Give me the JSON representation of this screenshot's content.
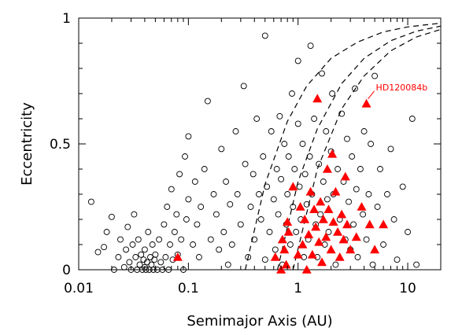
{
  "chart_data": {
    "type": "scatter",
    "xlabel": "Semimajor Axis (AU)",
    "ylabel": "Eccentricity",
    "xscale": "log",
    "xlim": [
      0.01,
      20
    ],
    "ylim": [
      0,
      1
    ],
    "x_ticks": [
      0.01,
      0.1,
      1,
      10
    ],
    "x_tick_labels": [
      "0.01",
      "0.1",
      "1",
      "10"
    ],
    "y_ticks": [
      0,
      0.5,
      1
    ],
    "y_tick_labels": [
      "0",
      "0.5",
      "1"
    ],
    "grid": false,
    "legend": "none",
    "colors": {
      "exoplanets": "#000000",
      "highlight": "#ff0000",
      "curves": "#000000"
    },
    "series": [
      {
        "marker": "open-circle",
        "points": [
          [
            0.013,
            0.27
          ],
          [
            0.015,
            0.07
          ],
          [
            0.017,
            0.09
          ],
          [
            0.018,
            0.15
          ],
          [
            0.02,
            0.21
          ],
          [
            0.021,
            0.0
          ],
          [
            0.023,
            0.05
          ],
          [
            0.024,
            0.12
          ],
          [
            0.026,
            0.01
          ],
          [
            0.027,
            0.08
          ],
          [
            0.028,
            0.17
          ],
          [
            0.029,
            0.03
          ],
          [
            0.03,
            0.0
          ],
          [
            0.031,
            0.1
          ],
          [
            0.032,
            0.22
          ],
          [
            0.033,
            0.05
          ],
          [
            0.034,
            0.0
          ],
          [
            0.035,
            0.12
          ],
          [
            0.036,
            0.02
          ],
          [
            0.037,
            0.06
          ],
          [
            0.038,
            0.0
          ],
          [
            0.039,
            0.04
          ],
          [
            0.04,
            0.01
          ],
          [
            0.04,
            0.08
          ],
          [
            0.041,
            0.0
          ],
          [
            0.042,
            0.03
          ],
          [
            0.043,
            0.15
          ],
          [
            0.044,
            0.0
          ],
          [
            0.045,
            0.05
          ],
          [
            0.046,
            0.02
          ],
          [
            0.047,
            0.1
          ],
          [
            0.048,
            0.0
          ],
          [
            0.049,
            0.04
          ],
          [
            0.05,
            0.06
          ],
          [
            0.052,
            0.0
          ],
          [
            0.054,
            0.12
          ],
          [
            0.056,
            0.03
          ],
          [
            0.058,
            0.0
          ],
          [
            0.06,
            0.18
          ],
          [
            0.062,
            0.05
          ],
          [
            0.064,
            0.25
          ],
          [
            0.066,
            0.0
          ],
          [
            0.068,
            0.1
          ],
          [
            0.07,
            0.32
          ],
          [
            0.072,
            0.04
          ],
          [
            0.075,
            0.15
          ],
          [
            0.078,
            0.22
          ],
          [
            0.08,
            0.06
          ],
          [
            0.083,
            0.38
          ],
          [
            0.086,
            0.12
          ],
          [
            0.09,
            0.0
          ],
          [
            0.093,
            0.45
          ],
          [
            0.096,
            0.2
          ],
          [
            0.1,
            0.28
          ],
          [
            0.1,
            0.53
          ],
          [
            0.11,
            0.1
          ],
          [
            0.115,
            0.35
          ],
          [
            0.12,
            0.18
          ],
          [
            0.125,
            0.05
          ],
          [
            0.13,
            0.25
          ],
          [
            0.14,
            0.4
          ],
          [
            0.15,
            0.67
          ],
          [
            0.16,
            0.12
          ],
          [
            0.17,
            0.3
          ],
          [
            0.18,
            0.22
          ],
          [
            0.19,
            0.08
          ],
          [
            0.2,
            0.48
          ],
          [
            0.21,
            0.15
          ],
          [
            0.22,
            0.35
          ],
          [
            0.23,
            0.02
          ],
          [
            0.24,
            0.26
          ],
          [
            0.25,
            0.1
          ],
          [
            0.27,
            0.55
          ],
          [
            0.28,
            0.3
          ],
          [
            0.3,
            0.18
          ],
          [
            0.32,
            0.73
          ],
          [
            0.33,
            0.42
          ],
          [
            0.35,
            0.05
          ],
          [
            0.37,
            0.25
          ],
          [
            0.39,
            0.38
          ],
          [
            0.4,
            0.12
          ],
          [
            0.42,
            0.6
          ],
          [
            0.44,
            0.3
          ],
          [
            0.46,
            0.2
          ],
          [
            0.48,
            0.45
          ],
          [
            0.5,
            0.04
          ],
          [
            0.5,
            0.93
          ],
          [
            0.52,
            0.33
          ],
          [
            0.55,
            0.15
          ],
          [
            0.57,
            0.55
          ],
          [
            0.6,
            0.28
          ],
          [
            0.62,
            0.08
          ],
          [
            0.64,
            0.4
          ],
          [
            0.66,
            0.22
          ],
          [
            0.68,
            0.61
          ],
          [
            0.7,
            0.36
          ],
          [
            0.72,
            0.02
          ],
          [
            0.75,
            0.5
          ],
          [
            0.78,
            0.18
          ],
          [
            0.8,
            0.3
          ],
          [
            0.82,
            0.45
          ],
          [
            0.85,
            0.1
          ],
          [
            0.88,
            0.7
          ],
          [
            0.9,
            0.25
          ],
          [
            0.93,
            0.4
          ],
          [
            0.96,
            0.15
          ],
          [
            1.0,
            0.58
          ],
          [
            1.0,
            0.83
          ],
          [
            1.03,
            0.33
          ],
          [
            1.06,
            0.2
          ],
          [
            1.1,
            0.5
          ],
          [
            1.13,
            0.05
          ],
          [
            1.16,
            0.38
          ],
          [
            1.2,
            0.26
          ],
          [
            1.24,
            0.12
          ],
          [
            1.28,
            0.45
          ],
          [
            1.3,
            0.89
          ],
          [
            1.34,
            0.3
          ],
          [
            1.4,
            0.6
          ],
          [
            1.45,
            0.18
          ],
          [
            1.5,
            0.05
          ],
          [
            1.55,
            0.42
          ],
          [
            1.6,
            0.22
          ],
          [
            1.65,
            0.78
          ],
          [
            1.7,
            0.35
          ],
          [
            1.75,
            0.1
          ],
          [
            1.8,
            0.55
          ],
          [
            1.85,
            0.28
          ],
          [
            1.9,
            0.15
          ],
          [
            2.0,
            0.47
          ],
          [
            2.05,
            0.7
          ],
          [
            2.1,
            0.3
          ],
          [
            2.2,
            0.02
          ],
          [
            2.3,
            0.4
          ],
          [
            2.4,
            0.2
          ],
          [
            2.5,
            0.62
          ],
          [
            2.6,
            0.35
          ],
          [
            2.7,
            0.12
          ],
          [
            2.8,
            0.52
          ],
          [
            2.9,
            0.27
          ],
          [
            3.0,
            0.08
          ],
          [
            3.1,
            0.45
          ],
          [
            3.2,
            0.18
          ],
          [
            3.3,
            0.72
          ],
          [
            3.4,
            0.32
          ],
          [
            3.5,
            0.05
          ],
          [
            3.7,
            0.4
          ],
          [
            3.9,
            0.22
          ],
          [
            4.0,
            0.55
          ],
          [
            4.2,
            0.12
          ],
          [
            4.4,
            0.3
          ],
          [
            4.6,
            0.5
          ],
          [
            4.8,
            0.02
          ],
          [
            5.0,
            0.77
          ],
          [
            5.3,
            0.25
          ],
          [
            5.6,
            0.4
          ],
          [
            6.0,
            0.1
          ],
          [
            6.5,
            0.3
          ],
          [
            7.0,
            0.48
          ],
          [
            7.5,
            0.2
          ],
          [
            8.0,
            0.04
          ],
          [
            9.0,
            0.33
          ],
          [
            10.0,
            0.15
          ],
          [
            11.0,
            0.6
          ],
          [
            12.0,
            0.02
          ]
        ]
      },
      {
        "marker": "filled-triangle",
        "points": [
          [
            0.08,
            0.05
          ],
          [
            0.62,
            0.05
          ],
          [
            0.7,
            0.0
          ],
          [
            0.72,
            0.12
          ],
          [
            0.75,
            0.08
          ],
          [
            0.78,
            0.02
          ],
          [
            0.8,
            0.19
          ],
          [
            0.82,
            0.15
          ],
          [
            0.9,
            0.33
          ],
          [
            1.0,
            0.06
          ],
          [
            1.05,
            0.25
          ],
          [
            1.1,
            0.1
          ],
          [
            1.15,
            0.2
          ],
          [
            1.2,
            0.0
          ],
          [
            1.25,
            0.14
          ],
          [
            1.3,
            0.31
          ],
          [
            1.35,
            0.06
          ],
          [
            1.4,
            0.24
          ],
          [
            1.45,
            0.17
          ],
          [
            1.5,
            0.68
          ],
          [
            1.55,
            0.11
          ],
          [
            1.6,
            0.27
          ],
          [
            1.65,
            0.03
          ],
          [
            1.7,
            0.2
          ],
          [
            1.8,
            0.13
          ],
          [
            1.85,
            0.4
          ],
          [
            1.9,
            0.24
          ],
          [
            2.0,
            0.08
          ],
          [
            2.05,
            0.46
          ],
          [
            2.1,
            0.19
          ],
          [
            2.2,
            0.31
          ],
          [
            2.3,
            0.15
          ],
          [
            2.4,
            0.05
          ],
          [
            2.5,
            0.22
          ],
          [
            2.6,
            0.12
          ],
          [
            2.7,
            0.37
          ],
          [
            2.8,
            0.18
          ],
          [
            3.0,
            0.08
          ],
          [
            3.4,
            0.13
          ],
          [
            3.8,
            0.25
          ],
          [
            4.2,
            0.66
          ],
          [
            4.5,
            0.18
          ],
          [
            5.0,
            0.08
          ],
          [
            6.0,
            0.18
          ]
        ]
      }
    ],
    "curves": [
      {
        "style": "dashed",
        "points": [
          [
            0.33,
            0.0
          ],
          [
            0.5,
            0.34
          ],
          [
            0.8,
            0.59
          ],
          [
            1.2,
            0.73
          ],
          [
            2.0,
            0.84
          ],
          [
            3.5,
            0.905
          ],
          [
            6.0,
            0.945
          ],
          [
            10.0,
            0.965
          ],
          [
            20.0,
            0.98
          ]
        ]
      },
      {
        "style": "dashed",
        "points": [
          [
            0.65,
            0.0
          ],
          [
            1.0,
            0.35
          ],
          [
            1.5,
            0.56
          ],
          [
            2.5,
            0.74
          ],
          [
            4.0,
            0.84
          ],
          [
            7.0,
            0.91
          ],
          [
            12.0,
            0.948
          ],
          [
            20.0,
            0.968
          ]
        ]
      },
      {
        "style": "dashed",
        "points": [
          [
            0.9,
            0.0
          ],
          [
            1.5,
            0.4
          ],
          [
            2.5,
            0.64
          ],
          [
            4.0,
            0.77
          ],
          [
            7.0,
            0.87
          ],
          [
            12.0,
            0.925
          ],
          [
            20.0,
            0.955
          ]
        ]
      }
    ],
    "annotations": [
      {
        "text": "HD120084b",
        "x": 4.2,
        "y": 0.66
      }
    ]
  }
}
